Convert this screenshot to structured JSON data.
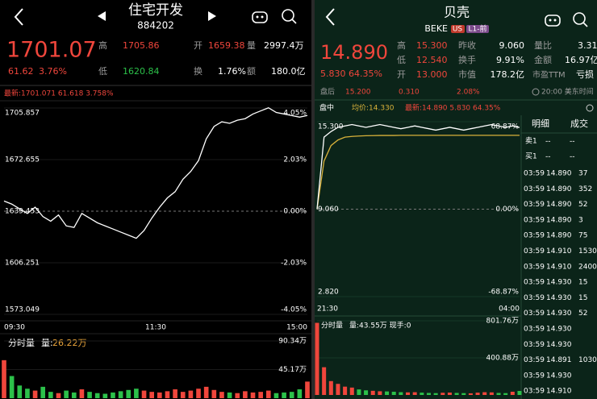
{
  "left": {
    "header": {
      "title": "住宅开发",
      "code": "884202"
    },
    "quote": {
      "price": "1701.07",
      "change": "61.62",
      "change_pct": "3.76%",
      "high_label": "高",
      "high": "1705.86",
      "open_label": "开",
      "open": "1659.38",
      "vol_label": "量",
      "vol": "2997.4万",
      "low_label": "低",
      "low": "1620.84",
      "turnover_label": "换",
      "turnover": "1.76%",
      "amount_label": "额",
      "amount": "180.0亿"
    },
    "latest": "最新:1701.071 61.618 3.758%",
    "chart": {
      "ylim": [
        1573.049,
        1705.857
      ],
      "yticks": [
        1705.857,
        1672.655,
        1639.453,
        1606.251,
        1573.049
      ],
      "pct_labels": [
        "4.05%",
        "2.03%",
        "0.00%",
        "-2.03%",
        "-4.05%"
      ],
      "times": [
        "09:30",
        "11:30",
        "15:00"
      ],
      "prices": [
        1646,
        1644,
        1641,
        1638,
        1642,
        1636,
        1633,
        1637,
        1630,
        1629,
        1638,
        1635,
        1632,
        1630,
        1628,
        1626,
        1624,
        1622,
        1627,
        1635,
        1642,
        1648,
        1652,
        1660,
        1665,
        1672,
        1686,
        1694,
        1697,
        1696,
        1698,
        1699,
        1702,
        1704,
        1706,
        1703,
        1702,
        1701,
        1700,
        1701.07
      ],
      "volume_label": "分时量",
      "volume_key": "量:",
      "volume_value": "26.22万",
      "vlim": [
        0,
        90.34
      ],
      "vticks": [
        {
          "value": 90.34,
          "label": "90.34万"
        },
        {
          "value": 45.17,
          "label": "45.17万"
        }
      ],
      "volumes": [
        60,
        35,
        20,
        15,
        12,
        18,
        10,
        8,
        12,
        9,
        14,
        10,
        8,
        7,
        9,
        11,
        13,
        15,
        12,
        10,
        9,
        11,
        14,
        10,
        12,
        15,
        18,
        13,
        10,
        9,
        8,
        11,
        9,
        10,
        12,
        8,
        9,
        10,
        14,
        26.22
      ]
    }
  },
  "right": {
    "header": {
      "title": "贝壳",
      "code": "BEKE",
      "badge1": "US",
      "badge2": "L1-前"
    },
    "quote": {
      "price": "14.890",
      "change": "5.830",
      "change_pct": "64.35%",
      "high_label": "高",
      "high": "15.300",
      "prev_label": "昨收",
      "prev": "9.060",
      "ratio_label": "量比",
      "ratio": "3.31",
      "low_label": "低",
      "low": "12.540",
      "turnover_label": "换手",
      "turnover": "9.91%",
      "amount_label": "金额",
      "amount": "16.97亿",
      "open_label": "开",
      "open": "13.000",
      "cap_label": "市值",
      "cap": "178.2亿",
      "pe_label": "市盈TTM",
      "pe": "亏损"
    },
    "after": {
      "label": "盘后",
      "price": "15.200",
      "change": "0.310",
      "change_pct": "2.08%",
      "time": "20:00 美东时间"
    },
    "session": "盘中",
    "avg": "均价:14.330",
    "latest": "最新:14.890 5.830 64.35%",
    "chart": {
      "ylim": [
        2.82,
        15.3
      ],
      "yticks": [
        {
          "value": 15.3,
          "label": "15.300"
        },
        {
          "value": 9.06,
          "label": "9.060"
        },
        {
          "value": 2.82,
          "label": "2.820"
        }
      ],
      "pct_labels": [
        "68.87%",
        "0.00%",
        "-68.87%"
      ],
      "times": [
        "21:30",
        "04:00"
      ],
      "prices": [
        9.06,
        14.2,
        14.6,
        14.9,
        15.0,
        15.1,
        15.0,
        14.9,
        15.0,
        15.1,
        15.0,
        14.9,
        14.8,
        14.9,
        15.0,
        14.9,
        14.8,
        14.7,
        14.8,
        14.9,
        14.8,
        14.7,
        14.8,
        14.9,
        15.0,
        15.1,
        15.0,
        14.9,
        15.0,
        14.89
      ],
      "avg_prices": [
        9.06,
        12.5,
        13.6,
        14.0,
        14.2,
        14.25,
        14.28,
        14.3,
        14.31,
        14.32,
        14.32,
        14.32,
        14.33,
        14.33,
        14.33,
        14.33,
        14.33,
        14.33,
        14.33,
        14.33,
        14.33,
        14.33,
        14.33,
        14.33,
        14.33,
        14.33,
        14.33,
        14.33,
        14.33,
        14.33
      ],
      "volume_label": "分时量",
      "volume_value": "量:43.55万 现手:0",
      "vlim": [
        0,
        801.76
      ],
      "vticks": [
        {
          "value": 801.76,
          "label": "801.76万"
        },
        {
          "value": 400.88,
          "label": "400.88万"
        }
      ],
      "volumes": [
        780,
        300,
        150,
        120,
        90,
        80,
        60,
        50,
        45,
        40,
        38,
        35,
        30,
        28,
        30,
        25,
        22,
        20,
        24,
        26,
        22,
        20,
        18,
        25,
        30,
        28,
        22,
        20,
        35,
        43.55
      ]
    },
    "tabs": [
      "明细",
      "成交"
    ],
    "book": [
      [
        "卖1",
        "--",
        "--"
      ],
      [
        "买1",
        "--",
        "--"
      ]
    ],
    "trades": [
      [
        "03:59",
        "14.890",
        37
      ],
      [
        "03:59",
        "14.890",
        352
      ],
      [
        "03:59",
        "14.890",
        52
      ],
      [
        "03:59",
        "14.890",
        3
      ],
      [
        "03:59",
        "14.890",
        75
      ],
      [
        "03:59",
        "14.910",
        1530
      ],
      [
        "03:59",
        "14.910",
        2400
      ],
      [
        "03:59",
        "14.930",
        15
      ],
      [
        "03:59",
        "14.930",
        15
      ],
      [
        "03:59",
        "14.930",
        52
      ],
      [
        "03:59",
        "14.930"
      ],
      [
        "03:59",
        "14.930"
      ],
      [
        "03:59",
        "14.891",
        1030
      ],
      [
        "03:59",
        "14.930"
      ],
      [
        "03:59",
        "14.910"
      ]
    ]
  }
}
